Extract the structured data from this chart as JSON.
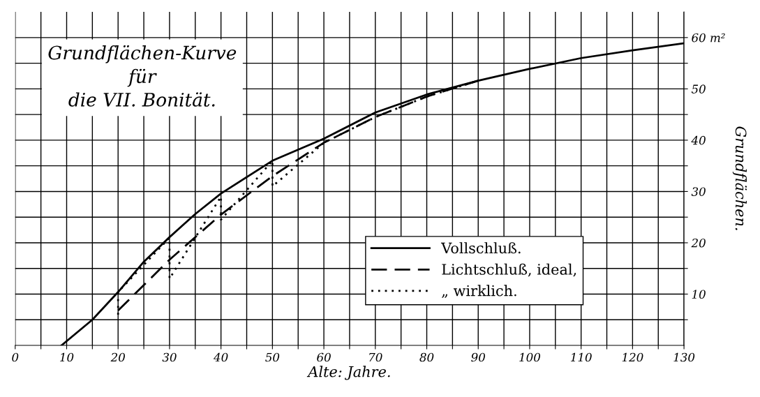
{
  "chart_data": {
    "type": "line",
    "title": "Grundflächen-Kurve\nfür\ndie VII. Bonität.",
    "xlabel": "Alte: Jahre.",
    "ylabel": "Grundflächen.",
    "series": [
      {
        "name": "Vollschluß.",
        "color": "#000000",
        "line_style": "solid",
        "x": [
          9,
          15,
          20,
          25,
          30,
          35,
          40,
          50,
          60,
          70,
          80,
          90,
          100,
          110,
          120,
          130
        ],
        "values": [
          0,
          5,
          10.4,
          16.3,
          21.1,
          25.6,
          29.6,
          36,
          40.3,
          45.4,
          48.9,
          51.6,
          53.9,
          56,
          57.5,
          58.9
        ]
      },
      {
        "name": "Lichtschluß, ideal,",
        "color": "#000000",
        "line_style": "dashed",
        "x": [
          20,
          30,
          40,
          50,
          60,
          70,
          80,
          90
        ],
        "values": [
          6.8,
          16.7,
          25.5,
          33,
          39.5,
          44.5,
          48.5,
          51.6
        ]
      },
      {
        "name": "„ wirklich.",
        "color": "#000000",
        "line_style": "dotted",
        "x": [
          20,
          20,
          30,
          30,
          40,
          40,
          50,
          50,
          60,
          70,
          80,
          90
        ],
        "values": [
          6,
          10.4,
          21,
          13,
          29,
          24.5,
          36,
          31,
          39.5,
          44.5,
          48.5,
          51.6
        ]
      }
    ],
    "xlim": [
      0,
      130
    ],
    "ylim": [
      0,
      65
    ],
    "xticks": [
      0,
      {
        "value": 5,
        "label": null
      },
      10,
      {
        "value": 15,
        "label": null
      },
      20,
      {
        "value": 25,
        "label": null
      },
      30,
      {
        "value": 35,
        "label": null
      },
      40,
      {
        "value": 45,
        "label": null
      },
      50,
      {
        "value": 55,
        "label": null
      },
      60,
      {
        "value": 65,
        "label": null
      },
      70,
      {
        "value": 75,
        "label": null
      },
      80,
      {
        "value": 85,
        "label": null
      },
      90,
      {
        "value": 95,
        "label": null
      },
      100,
      {
        "value": 105,
        "label": null
      },
      110,
      {
        "value": 115,
        "label": null
      },
      120,
      {
        "value": 125,
        "label": null
      },
      130
    ],
    "yticks": [
      {
        "value": 5,
        "label": null
      },
      10,
      {
        "value": 15,
        "label": null
      },
      20,
      {
        "value": 25,
        "label": null
      },
      30,
      {
        "value": 35,
        "label": null
      },
      40,
      {
        "value": 45,
        "label": null
      },
      50,
      {
        "value": 55,
        "label": null
      },
      {
        "value": 60,
        "label": "60 m²"
      }
    ],
    "grid": true,
    "legend": "bottom right",
    "marker": "none"
  }
}
